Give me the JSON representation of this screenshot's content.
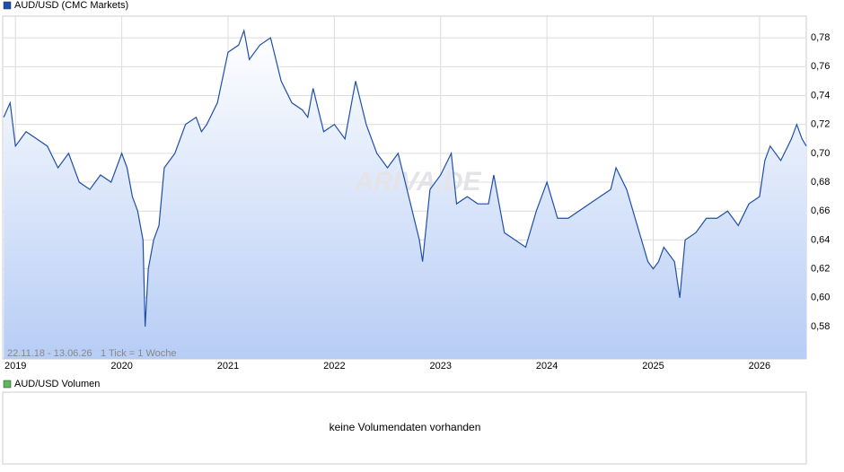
{
  "chart_data": [
    {
      "type": "line",
      "legend": "AUD/USD (CMC Markets)",
      "range_label": "22.11.18 - 13.06.26",
      "tick_label": "1 Tick = 1 Woche",
      "watermark": "ARIVA.DE",
      "x": [
        2018.89,
        2018.95,
        2019.0,
        2019.1,
        2019.2,
        2019.3,
        2019.4,
        2019.5,
        2019.6,
        2019.7,
        2019.8,
        2019.9,
        2020.0,
        2020.05,
        2020.1,
        2020.15,
        2020.2,
        2020.22,
        2020.25,
        2020.3,
        2020.35,
        2020.4,
        2020.5,
        2020.6,
        2020.7,
        2020.75,
        2020.8,
        2020.9,
        2021.0,
        2021.1,
        2021.15,
        2021.2,
        2021.3,
        2021.4,
        2021.5,
        2021.6,
        2021.7,
        2021.75,
        2021.8,
        2021.9,
        2022.0,
        2022.1,
        2022.2,
        2022.3,
        2022.4,
        2022.5,
        2022.6,
        2022.7,
        2022.8,
        2022.83,
        2022.9,
        2023.0,
        2023.1,
        2023.15,
        2023.25,
        2023.35,
        2023.45,
        2023.5,
        2023.6,
        2023.7,
        2023.8,
        2023.9,
        2024.0,
        2024.1,
        2024.2,
        2024.3,
        2024.4,
        2024.5,
        2024.6,
        2024.65,
        2024.75,
        2024.85,
        2024.95,
        2025.0,
        2025.05,
        2025.1,
        2025.2,
        2025.25,
        2025.3,
        2025.4,
        2025.5,
        2025.6,
        2025.7,
        2025.8,
        2025.9,
        2026.0,
        2026.05,
        2026.1,
        2026.2,
        2026.3,
        2026.35,
        2026.4,
        2026.44
      ],
      "series": [
        {
          "name": "AUD/USD",
          "color": "#1f4fa8",
          "values": [
            0.725,
            0.735,
            0.705,
            0.715,
            0.71,
            0.705,
            0.69,
            0.7,
            0.68,
            0.675,
            0.685,
            0.68,
            0.7,
            0.69,
            0.67,
            0.66,
            0.64,
            0.58,
            0.62,
            0.64,
            0.65,
            0.69,
            0.7,
            0.72,
            0.725,
            0.715,
            0.72,
            0.735,
            0.77,
            0.775,
            0.785,
            0.765,
            0.775,
            0.78,
            0.75,
            0.735,
            0.73,
            0.725,
            0.745,
            0.715,
            0.72,
            0.71,
            0.75,
            0.72,
            0.7,
            0.69,
            0.7,
            0.67,
            0.64,
            0.625,
            0.675,
            0.685,
            0.7,
            0.665,
            0.67,
            0.665,
            0.665,
            0.685,
            0.645,
            0.64,
            0.635,
            0.66,
            0.68,
            0.655,
            0.655,
            0.66,
            0.665,
            0.67,
            0.675,
            0.69,
            0.675,
            0.65,
            0.625,
            0.62,
            0.625,
            0.635,
            0.625,
            0.6,
            0.64,
            0.645,
            0.655,
            0.655,
            0.66,
            0.65,
            0.665,
            0.67,
            0.695,
            0.705,
            0.695,
            0.71,
            0.72,
            0.71,
            0.705
          ]
        }
      ],
      "xlim": [
        2018.88,
        2026.44
      ],
      "xticks": [
        2019,
        2020,
        2021,
        2022,
        2023,
        2024,
        2025,
        2026
      ],
      "ylim": [
        0.5576,
        0.795
      ],
      "yticks": [
        {
          "value": 0.58,
          "label": "0,58"
        },
        {
          "value": 0.6,
          "label": "0,60"
        },
        {
          "value": 0.62,
          "label": "0,62"
        },
        {
          "value": 0.64,
          "label": "0,64"
        },
        {
          "value": 0.66,
          "label": "0,66"
        },
        {
          "value": 0.68,
          "label": "0,68"
        },
        {
          "value": 0.7,
          "label": "0,70"
        },
        {
          "value": 0.72,
          "label": "0,72"
        },
        {
          "value": 0.74,
          "label": "0,74"
        },
        {
          "value": 0.76,
          "label": "0,76"
        },
        {
          "value": 0.78,
          "label": "0,78"
        }
      ],
      "grid": true
    },
    {
      "type": "volume",
      "legend": "AUD/USD Volumen",
      "color": "#5cb85c",
      "message": "keine Volumendaten vorhanden"
    }
  ]
}
